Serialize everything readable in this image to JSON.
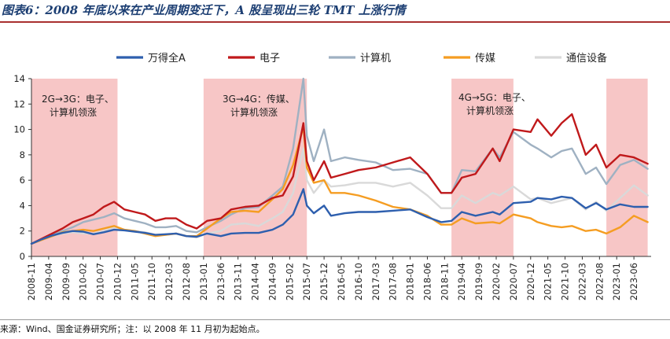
{
  "header": {
    "title": "图表6：2008 年底以来在产业周期变迁下，A 股呈现出三轮 TMT 上涨行情"
  },
  "footer": {
    "source": "来源：Wind、国金证券研究所；注：以 2008 年 11 月初为起始点。"
  },
  "colors": {
    "title": "#1d3f73",
    "rule": "#a9302f",
    "shade": "#f7c6c6"
  },
  "chart_data": {
    "type": "line",
    "title": "",
    "xlabel": "",
    "ylabel": "",
    "ylim": [
      0,
      14
    ],
    "yticks": [
      0,
      2,
      4,
      6,
      8,
      10,
      12,
      14
    ],
    "grid": false,
    "legend_position": "top",
    "x_tick_labels": [
      "2008-11",
      "2009-04",
      "2009-09",
      "2010-02",
      "2010-07",
      "2010-12",
      "2011-05",
      "2011-10",
      "2012-03",
      "2012-08",
      "2013-01",
      "2013-06",
      "2013-11",
      "2014-04",
      "2014-09",
      "2015-02",
      "2015-07",
      "2015-12",
      "2016-05",
      "2016-10",
      "2017-03",
      "2017-08",
      "2018-01",
      "2018-06",
      "2018-11",
      "2019-04",
      "2019-09",
      "2020-02",
      "2020-07",
      "2020-12",
      "2021-05",
      "2021-10",
      "2022-03",
      "2022-08",
      "2023-01",
      "2023-06"
    ],
    "shaded_periods": [
      {
        "start": "2008-11",
        "end": "2010-12",
        "label": "2G→3G：电子、\n计算机领涨"
      },
      {
        "start": "2013-01",
        "end": "2015-07",
        "label": "3G→4G：传媒、\n计算机领涨"
      },
      {
        "start": "2019-01",
        "end": "2020-07",
        "label": "4G→5G：电子、\n计算机领涨"
      },
      {
        "start": "2022-10",
        "end": "2023-10",
        "label": ""
      }
    ],
    "series": [
      {
        "name": "万得全A",
        "color": "#2e5fae",
        "width": 2.4,
        "points": [
          [
            "2008-11",
            1.0
          ],
          [
            "2009-02",
            1.35
          ],
          [
            "2009-05",
            1.65
          ],
          [
            "2009-08",
            1.85
          ],
          [
            "2009-11",
            2.0
          ],
          [
            "2010-02",
            1.95
          ],
          [
            "2010-05",
            1.75
          ],
          [
            "2010-08",
            1.9
          ],
          [
            "2010-11",
            2.1
          ],
          [
            "2011-02",
            2.05
          ],
          [
            "2011-05",
            1.95
          ],
          [
            "2011-08",
            1.85
          ],
          [
            "2011-11",
            1.7
          ],
          [
            "2012-02",
            1.75
          ],
          [
            "2012-05",
            1.8
          ],
          [
            "2012-08",
            1.6
          ],
          [
            "2012-11",
            1.55
          ],
          [
            "2013-02",
            1.8
          ],
          [
            "2013-06",
            1.6
          ],
          [
            "2013-09",
            1.8
          ],
          [
            "2014-01",
            1.85
          ],
          [
            "2014-05",
            1.85
          ],
          [
            "2014-09",
            2.1
          ],
          [
            "2014-12",
            2.5
          ],
          [
            "2015-03",
            3.3
          ],
          [
            "2015-06",
            5.3
          ],
          [
            "2015-07",
            4.0
          ],
          [
            "2015-09",
            3.4
          ],
          [
            "2015-12",
            4.0
          ],
          [
            "2016-02",
            3.2
          ],
          [
            "2016-06",
            3.4
          ],
          [
            "2016-10",
            3.5
          ],
          [
            "2017-03",
            3.5
          ],
          [
            "2017-08",
            3.6
          ],
          [
            "2018-01",
            3.7
          ],
          [
            "2018-06",
            3.1
          ],
          [
            "2018-10",
            2.7
          ],
          [
            "2019-01",
            2.8
          ],
          [
            "2019-04",
            3.5
          ],
          [
            "2019-08",
            3.2
          ],
          [
            "2020-01",
            3.5
          ],
          [
            "2020-03",
            3.3
          ],
          [
            "2020-07",
            4.2
          ],
          [
            "2020-12",
            4.3
          ],
          [
            "2021-02",
            4.6
          ],
          [
            "2021-06",
            4.5
          ],
          [
            "2021-09",
            4.7
          ],
          [
            "2021-12",
            4.6
          ],
          [
            "2022-04",
            3.8
          ],
          [
            "2022-07",
            4.2
          ],
          [
            "2022-10",
            3.7
          ],
          [
            "2023-02",
            4.1
          ],
          [
            "2023-06",
            3.9
          ],
          [
            "2023-10",
            3.9
          ]
        ]
      },
      {
        "name": "电子",
        "color": "#c0191b",
        "width": 2.4,
        "points": [
          [
            "2008-11",
            1.0
          ],
          [
            "2009-02",
            1.4
          ],
          [
            "2009-05",
            1.8
          ],
          [
            "2009-08",
            2.2
          ],
          [
            "2009-11",
            2.7
          ],
          [
            "2010-02",
            3.0
          ],
          [
            "2010-05",
            3.3
          ],
          [
            "2010-08",
            3.9
          ],
          [
            "2010-11",
            4.3
          ],
          [
            "2011-02",
            3.7
          ],
          [
            "2011-05",
            3.5
          ],
          [
            "2011-08",
            3.3
          ],
          [
            "2011-11",
            2.8
          ],
          [
            "2012-02",
            3.0
          ],
          [
            "2012-05",
            3.0
          ],
          [
            "2012-08",
            2.5
          ],
          [
            "2012-11",
            2.2
          ],
          [
            "2013-02",
            2.8
          ],
          [
            "2013-06",
            3.0
          ],
          [
            "2013-09",
            3.7
          ],
          [
            "2014-01",
            3.9
          ],
          [
            "2014-05",
            4.0
          ],
          [
            "2014-09",
            4.6
          ],
          [
            "2014-12",
            4.8
          ],
          [
            "2015-03",
            6.3
          ],
          [
            "2015-06",
            10.5
          ],
          [
            "2015-07",
            7.5
          ],
          [
            "2015-09",
            6.0
          ],
          [
            "2015-12",
            7.5
          ],
          [
            "2016-02",
            6.2
          ],
          [
            "2016-06",
            6.5
          ],
          [
            "2016-10",
            6.8
          ],
          [
            "2017-03",
            7.0
          ],
          [
            "2017-08",
            7.4
          ],
          [
            "2018-01",
            7.8
          ],
          [
            "2018-06",
            6.5
          ],
          [
            "2018-10",
            5.0
          ],
          [
            "2019-01",
            5.0
          ],
          [
            "2019-04",
            6.2
          ],
          [
            "2019-08",
            6.5
          ],
          [
            "2020-01",
            8.5
          ],
          [
            "2020-03",
            7.5
          ],
          [
            "2020-07",
            10.0
          ],
          [
            "2020-12",
            9.8
          ],
          [
            "2021-02",
            10.8
          ],
          [
            "2021-06",
            9.5
          ],
          [
            "2021-09",
            10.5
          ],
          [
            "2021-12",
            11.2
          ],
          [
            "2022-04",
            8.0
          ],
          [
            "2022-07",
            8.8
          ],
          [
            "2022-10",
            7.0
          ],
          [
            "2023-02",
            8.0
          ],
          [
            "2023-06",
            7.8
          ],
          [
            "2023-10",
            7.3
          ]
        ]
      },
      {
        "name": "计算机",
        "color": "#9fb1c2",
        "width": 2.4,
        "points": [
          [
            "2008-11",
            1.0
          ],
          [
            "2009-02",
            1.3
          ],
          [
            "2009-05",
            1.7
          ],
          [
            "2009-08",
            2.0
          ],
          [
            "2009-11",
            2.3
          ],
          [
            "2010-02",
            2.7
          ],
          [
            "2010-05",
            2.9
          ],
          [
            "2010-08",
            3.1
          ],
          [
            "2010-11",
            3.4
          ],
          [
            "2011-02",
            3.0
          ],
          [
            "2011-05",
            2.8
          ],
          [
            "2011-08",
            2.6
          ],
          [
            "2011-11",
            2.3
          ],
          [
            "2012-02",
            2.3
          ],
          [
            "2012-05",
            2.4
          ],
          [
            "2012-08",
            2.0
          ],
          [
            "2012-11",
            1.9
          ],
          [
            "2013-02",
            2.3
          ],
          [
            "2013-06",
            2.8
          ],
          [
            "2013-09",
            3.3
          ],
          [
            "2014-01",
            3.8
          ],
          [
            "2014-05",
            3.9
          ],
          [
            "2014-09",
            4.8
          ],
          [
            "2014-12",
            5.5
          ],
          [
            "2015-03",
            8.5
          ],
          [
            "2015-06",
            14.0
          ],
          [
            "2015-07",
            9.5
          ],
          [
            "2015-09",
            7.5
          ],
          [
            "2015-12",
            10.0
          ],
          [
            "2016-02",
            7.5
          ],
          [
            "2016-06",
            7.8
          ],
          [
            "2016-10",
            7.6
          ],
          [
            "2017-03",
            7.4
          ],
          [
            "2017-08",
            6.8
          ],
          [
            "2018-01",
            6.9
          ],
          [
            "2018-06",
            6.5
          ],
          [
            "2018-10",
            5.0
          ],
          [
            "2019-01",
            5.0
          ],
          [
            "2019-04",
            6.8
          ],
          [
            "2019-08",
            6.7
          ],
          [
            "2020-01",
            8.5
          ],
          [
            "2020-03",
            7.8
          ],
          [
            "2020-07",
            9.8
          ],
          [
            "2020-12",
            8.8
          ],
          [
            "2021-02",
            8.5
          ],
          [
            "2021-06",
            7.8
          ],
          [
            "2021-09",
            8.3
          ],
          [
            "2021-12",
            8.5
          ],
          [
            "2022-04",
            6.5
          ],
          [
            "2022-07",
            7.0
          ],
          [
            "2022-10",
            5.7
          ],
          [
            "2023-02",
            7.2
          ],
          [
            "2023-06",
            7.6
          ],
          [
            "2023-10",
            6.9
          ]
        ]
      },
      {
        "name": "传媒",
        "color": "#f59d22",
        "width": 2.4,
        "points": [
          [
            "2008-11",
            1.0
          ],
          [
            "2009-02",
            1.3
          ],
          [
            "2009-05",
            1.6
          ],
          [
            "2009-08",
            1.9
          ],
          [
            "2009-11",
            2.0
          ],
          [
            "2010-02",
            2.1
          ],
          [
            "2010-05",
            2.0
          ],
          [
            "2010-08",
            2.2
          ],
          [
            "2010-11",
            2.4
          ],
          [
            "2011-02",
            2.1
          ],
          [
            "2011-05",
            2.0
          ],
          [
            "2011-08",
            1.8
          ],
          [
            "2011-11",
            1.6
          ],
          [
            "2012-02",
            1.7
          ],
          [
            "2012-05",
            1.8
          ],
          [
            "2012-08",
            1.6
          ],
          [
            "2012-11",
            1.6
          ],
          [
            "2013-02",
            2.2
          ],
          [
            "2013-06",
            3.0
          ],
          [
            "2013-09",
            3.5
          ],
          [
            "2014-01",
            3.6
          ],
          [
            "2014-05",
            3.5
          ],
          [
            "2014-09",
            4.5
          ],
          [
            "2014-12",
            5.3
          ],
          [
            "2015-03",
            7.2
          ],
          [
            "2015-06",
            10.2
          ],
          [
            "2015-07",
            7.0
          ],
          [
            "2015-09",
            5.8
          ],
          [
            "2015-12",
            6.0
          ],
          [
            "2016-02",
            5.0
          ],
          [
            "2016-06",
            5.0
          ],
          [
            "2016-10",
            4.8
          ],
          [
            "2017-03",
            4.4
          ],
          [
            "2017-08",
            3.9
          ],
          [
            "2018-01",
            3.7
          ],
          [
            "2018-06",
            3.2
          ],
          [
            "2018-10",
            2.5
          ],
          [
            "2019-01",
            2.5
          ],
          [
            "2019-04",
            3.0
          ],
          [
            "2019-08",
            2.6
          ],
          [
            "2020-01",
            2.7
          ],
          [
            "2020-03",
            2.6
          ],
          [
            "2020-07",
            3.3
          ],
          [
            "2020-12",
            3.0
          ],
          [
            "2021-02",
            2.7
          ],
          [
            "2021-06",
            2.4
          ],
          [
            "2021-09",
            2.3
          ],
          [
            "2021-12",
            2.4
          ],
          [
            "2022-04",
            2.0
          ],
          [
            "2022-07",
            2.1
          ],
          [
            "2022-10",
            1.8
          ],
          [
            "2023-02",
            2.3
          ],
          [
            "2023-06",
            3.2
          ],
          [
            "2023-10",
            2.7
          ]
        ]
      },
      {
        "name": "通信设备",
        "color": "#d9d9d9",
        "width": 2.4,
        "points": [
          [
            "2008-11",
            1.0
          ],
          [
            "2009-02",
            1.3
          ],
          [
            "2009-05",
            1.6
          ],
          [
            "2009-08",
            1.8
          ],
          [
            "2009-11",
            1.9
          ],
          [
            "2010-02",
            1.8
          ],
          [
            "2010-05",
            1.8
          ],
          [
            "2010-08",
            2.0
          ],
          [
            "2010-11",
            2.3
          ],
          [
            "2011-02",
            2.1
          ],
          [
            "2011-05",
            2.0
          ],
          [
            "2011-08",
            1.9
          ],
          [
            "2011-11",
            1.7
          ],
          [
            "2012-02",
            1.7
          ],
          [
            "2012-05",
            1.8
          ],
          [
            "2012-08",
            1.6
          ],
          [
            "2012-11",
            1.5
          ],
          [
            "2013-02",
            1.8
          ],
          [
            "2013-06",
            2.0
          ],
          [
            "2013-09",
            2.5
          ],
          [
            "2014-01",
            2.6
          ],
          [
            "2014-05",
            2.4
          ],
          [
            "2014-09",
            3.0
          ],
          [
            "2014-12",
            3.5
          ],
          [
            "2015-03",
            5.0
          ],
          [
            "2015-06",
            8.5
          ],
          [
            "2015-07",
            6.0
          ],
          [
            "2015-09",
            5.0
          ],
          [
            "2015-12",
            6.0
          ],
          [
            "2016-02",
            5.5
          ],
          [
            "2016-06",
            5.6
          ],
          [
            "2016-10",
            5.8
          ],
          [
            "2017-03",
            5.8
          ],
          [
            "2017-08",
            5.5
          ],
          [
            "2018-01",
            5.8
          ],
          [
            "2018-06",
            4.8
          ],
          [
            "2018-10",
            3.8
          ],
          [
            "2019-01",
            3.8
          ],
          [
            "2019-04",
            4.8
          ],
          [
            "2019-08",
            4.2
          ],
          [
            "2020-01",
            5.0
          ],
          [
            "2020-03",
            4.8
          ],
          [
            "2020-07",
            5.5
          ],
          [
            "2020-12",
            4.5
          ],
          [
            "2021-02",
            4.6
          ],
          [
            "2021-06",
            4.2
          ],
          [
            "2021-09",
            4.4
          ],
          [
            "2021-12",
            4.6
          ],
          [
            "2022-04",
            3.7
          ],
          [
            "2022-07",
            4.3
          ],
          [
            "2022-10",
            3.6
          ],
          [
            "2023-02",
            4.6
          ],
          [
            "2023-06",
            5.6
          ],
          [
            "2023-10",
            4.8
          ]
        ]
      }
    ]
  }
}
